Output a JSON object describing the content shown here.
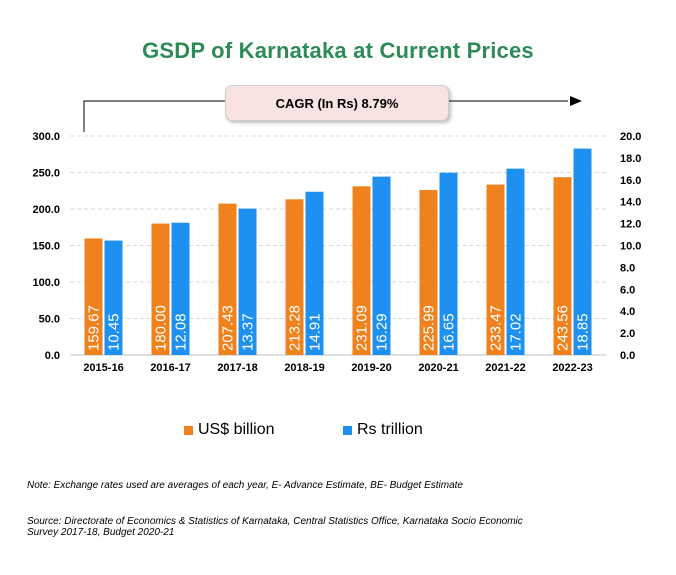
{
  "chart_data": {
    "type": "bar",
    "title": "GSDP of Karnataka at Current Prices",
    "categories": [
      "2015-16",
      "2016-17",
      "2017-18",
      "2018-19",
      "2019-20",
      "2020-21",
      "2021-22",
      "2022-23"
    ],
    "series": [
      {
        "name": "US$ billion",
        "axis": "left",
        "color": "#f0821e",
        "values": [
          159.67,
          180.0,
          207.43,
          213.28,
          231.09,
          225.99,
          233.47,
          243.56
        ],
        "labels": [
          "159.67",
          "180.00",
          "207.43",
          "213.28",
          "231.09",
          "225.99",
          "233.47",
          "243.56"
        ]
      },
      {
        "name": "Rs trillion",
        "axis": "right",
        "color": "#1e90f0",
        "values": [
          10.45,
          12.08,
          13.37,
          14.91,
          16.29,
          16.65,
          17.02,
          18.85
        ],
        "labels": [
          "10.45",
          "12.08",
          "13.37",
          "14.91",
          "16.29",
          "16.65",
          "17.02",
          "18.85"
        ]
      }
    ],
    "ylim_left": [
      0,
      300
    ],
    "ylim_right": [
      0,
      20
    ],
    "yticks_left": [
      "0.0",
      "50.0",
      "100.0",
      "150.0",
      "200.0",
      "250.0",
      "300.0"
    ],
    "yticks_right": [
      "0.0",
      "2.0",
      "4.0",
      "6.0",
      "8.0",
      "10.0",
      "12.0",
      "14.0",
      "16.0",
      "18.0",
      "20.0"
    ],
    "grid": true,
    "legend_position": "bottom",
    "annotation": "CAGR  (In Rs) 8.79%"
  },
  "notes": {
    "note": "Note: Exchange rates used are averages of each year, E- Advance Estimate, BE- Budget Estimate",
    "source": "Source: Directorate of Economics & Statistics of Karnataka, Central Statistics Office, Karnataka Socio Economic Survey 2017-18, Budget 2020-21"
  }
}
